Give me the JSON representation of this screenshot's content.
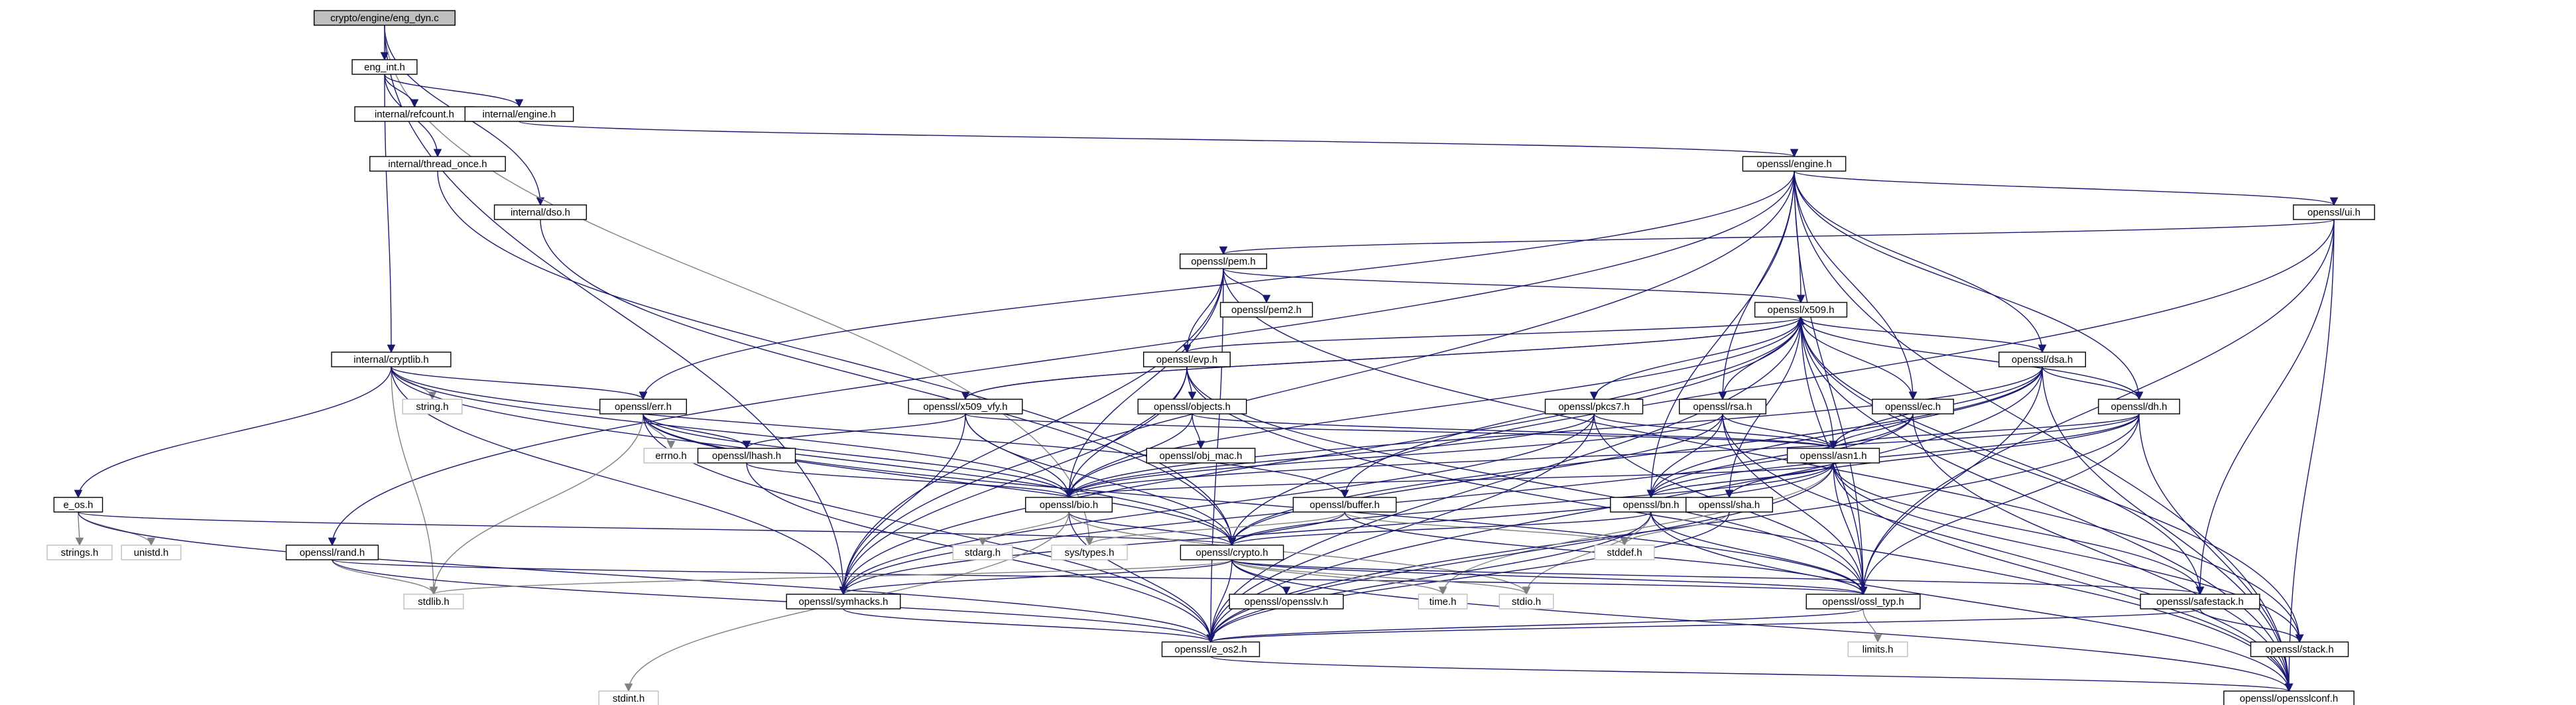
{
  "graph": {
    "title": "crypto/engine/eng_dyn.c",
    "edge_color": "#191970",
    "system_edge_color": "#808080",
    "root_fill": "#bfbfbf",
    "nodes": [
      {
        "id": "root",
        "label": "crypto/engine/eng_dyn.c",
        "kind": "root"
      },
      {
        "id": "eng_int",
        "label": "eng_int.h"
      },
      {
        "id": "refcount",
        "label": "internal/refcount.h"
      },
      {
        "id": "int_engine",
        "label": "internal/engine.h"
      },
      {
        "id": "thread_once",
        "label": "internal/thread_once.h"
      },
      {
        "id": "dso",
        "label": "internal/dso.h"
      },
      {
        "id": "engine",
        "label": "openssl/engine.h"
      },
      {
        "id": "ui",
        "label": "openssl/ui.h"
      },
      {
        "id": "pem",
        "label": "openssl/pem.h"
      },
      {
        "id": "pem2",
        "label": "openssl/pem2.h"
      },
      {
        "id": "x509",
        "label": "openssl/x509.h"
      },
      {
        "id": "cryptlib",
        "label": "internal/cryptlib.h"
      },
      {
        "id": "string",
        "label": "string.h",
        "kind": "sys"
      },
      {
        "id": "evp",
        "label": "openssl/evp.h"
      },
      {
        "id": "dsa",
        "label": "openssl/dsa.h"
      },
      {
        "id": "err",
        "label": "openssl/err.h"
      },
      {
        "id": "x509_vfy",
        "label": "openssl/x509_vfy.h"
      },
      {
        "id": "objects",
        "label": "openssl/objects.h"
      },
      {
        "id": "pkcs7",
        "label": "openssl/pkcs7.h"
      },
      {
        "id": "rsa",
        "label": "openssl/rsa.h"
      },
      {
        "id": "ec",
        "label": "openssl/ec.h"
      },
      {
        "id": "dh",
        "label": "openssl/dh.h"
      },
      {
        "id": "errno",
        "label": "errno.h",
        "kind": "sys"
      },
      {
        "id": "lhash",
        "label": "openssl/lhash.h"
      },
      {
        "id": "obj_mac",
        "label": "openssl/obj_mac.h"
      },
      {
        "id": "asn1",
        "label": "openssl/asn1.h"
      },
      {
        "id": "e_os",
        "label": "e_os.h"
      },
      {
        "id": "bio",
        "label": "openssl/bio.h"
      },
      {
        "id": "buffer",
        "label": "openssl/buffer.h"
      },
      {
        "id": "bn",
        "label": "openssl/bn.h"
      },
      {
        "id": "sha",
        "label": "openssl/sha.h"
      },
      {
        "id": "strings",
        "label": "strings.h",
        "kind": "sys"
      },
      {
        "id": "unistd",
        "label": "unistd.h",
        "kind": "sys"
      },
      {
        "id": "rand",
        "label": "openssl/rand.h"
      },
      {
        "id": "stdarg",
        "label": "stdarg.h",
        "kind": "sys"
      },
      {
        "id": "systypes",
        "label": "sys/types.h",
        "kind": "sys"
      },
      {
        "id": "crypto",
        "label": "openssl/crypto.h"
      },
      {
        "id": "stddef",
        "label": "stddef.h",
        "kind": "sys"
      },
      {
        "id": "stdlib",
        "label": "stdlib.h",
        "kind": "sys"
      },
      {
        "id": "symhacks",
        "label": "openssl/symhacks.h"
      },
      {
        "id": "opensslv",
        "label": "openssl/opensslv.h"
      },
      {
        "id": "time",
        "label": "time.h",
        "kind": "sys"
      },
      {
        "id": "stdio",
        "label": "stdio.h",
        "kind": "sys"
      },
      {
        "id": "ossl_typ",
        "label": "openssl/ossl_typ.h"
      },
      {
        "id": "safestack",
        "label": "openssl/safestack.h"
      },
      {
        "id": "limits",
        "label": "limits.h",
        "kind": "sys"
      },
      {
        "id": "e_os2",
        "label": "openssl/e_os2.h"
      },
      {
        "id": "stack",
        "label": "openssl/stack.h"
      },
      {
        "id": "stdint",
        "label": "stdint.h",
        "kind": "sys"
      },
      {
        "id": "opensslconf",
        "label": "openssl/opensslconf.h"
      }
    ],
    "edges": [
      [
        "root",
        "eng_int"
      ],
      [
        "root",
        "dso"
      ],
      [
        "root",
        "systypes"
      ],
      [
        "root",
        "symhacks"
      ],
      [
        "eng_int",
        "refcount"
      ],
      [
        "eng_int",
        "int_engine"
      ],
      [
        "eng_int",
        "thread_once"
      ],
      [
        "eng_int",
        "cryptlib"
      ],
      [
        "int_engine",
        "engine"
      ],
      [
        "thread_once",
        "crypto"
      ],
      [
        "dso",
        "crypto"
      ],
      [
        "engine",
        "ui"
      ],
      [
        "engine",
        "x509"
      ],
      [
        "engine",
        "rsa"
      ],
      [
        "engine",
        "dsa"
      ],
      [
        "engine",
        "dh"
      ],
      [
        "engine",
        "ec"
      ],
      [
        "engine",
        "bn"
      ],
      [
        "engine",
        "rand"
      ],
      [
        "engine",
        "err"
      ],
      [
        "engine",
        "ossl_typ"
      ],
      [
        "engine",
        "symhacks"
      ],
      [
        "engine",
        "opensslconf"
      ],
      [
        "ui",
        "pem"
      ],
      [
        "ui",
        "crypto"
      ],
      [
        "ui",
        "safestack"
      ],
      [
        "ui",
        "ossl_typ"
      ],
      [
        "ui",
        "opensslconf"
      ],
      [
        "pem",
        "pem2"
      ],
      [
        "pem",
        "x509"
      ],
      [
        "pem",
        "evp"
      ],
      [
        "pem",
        "bio"
      ],
      [
        "pem",
        "e_os2"
      ],
      [
        "pem",
        "symhacks"
      ],
      [
        "pem",
        "stack"
      ],
      [
        "x509",
        "evp"
      ],
      [
        "x509",
        "x509_vfy"
      ],
      [
        "x509",
        "pkcs7"
      ],
      [
        "x509",
        "rsa"
      ],
      [
        "x509",
        "dsa"
      ],
      [
        "x509",
        "ec"
      ],
      [
        "x509",
        "dh"
      ],
      [
        "x509",
        "asn1"
      ],
      [
        "x509",
        "bio"
      ],
      [
        "x509",
        "buffer"
      ],
      [
        "x509",
        "sha"
      ],
      [
        "x509",
        "ossl_typ"
      ],
      [
        "x509",
        "safestack"
      ],
      [
        "x509",
        "stack"
      ],
      [
        "x509",
        "opensslconf"
      ],
      [
        "x509",
        "e_os2"
      ],
      [
        "x509",
        "symhacks"
      ],
      [
        "cryptlib",
        "string"
      ],
      [
        "cryptlib",
        "err"
      ],
      [
        "cryptlib",
        "e_os"
      ],
      [
        "cryptlib",
        "bio"
      ],
      [
        "cryptlib",
        "buffer"
      ],
      [
        "cryptlib",
        "crypto"
      ],
      [
        "cryptlib",
        "stdlib"
      ],
      [
        "cryptlib",
        "symhacks"
      ],
      [
        "evp",
        "objects"
      ],
      [
        "evp",
        "bio"
      ],
      [
        "evp",
        "ossl_typ"
      ],
      [
        "evp",
        "opensslconf"
      ],
      [
        "evp",
        "symhacks"
      ],
      [
        "dsa",
        "dh"
      ],
      [
        "dsa",
        "bn"
      ],
      [
        "dsa",
        "asn1"
      ],
      [
        "dsa",
        "bio"
      ],
      [
        "dsa",
        "crypto"
      ],
      [
        "dsa",
        "ossl_typ"
      ],
      [
        "dsa",
        "e_os2"
      ],
      [
        "dsa",
        "opensslconf"
      ],
      [
        "err",
        "errno"
      ],
      [
        "err",
        "lhash"
      ],
      [
        "err",
        "bio"
      ],
      [
        "err",
        "crypto"
      ],
      [
        "err",
        "stdlib"
      ],
      [
        "err",
        "ossl_typ"
      ],
      [
        "err",
        "e_os2"
      ],
      [
        "x509_vfy",
        "x509"
      ],
      [
        "x509_vfy",
        "lhash"
      ],
      [
        "x509_vfy",
        "bio"
      ],
      [
        "x509_vfy",
        "crypto"
      ],
      [
        "x509_vfy",
        "symhacks"
      ],
      [
        "x509_vfy",
        "asn1"
      ],
      [
        "objects",
        "obj_mac"
      ],
      [
        "objects",
        "bio"
      ],
      [
        "objects",
        "asn1"
      ],
      [
        "pkcs7",
        "asn1"
      ],
      [
        "pkcs7",
        "bio"
      ],
      [
        "pkcs7",
        "e_os2"
      ],
      [
        "pkcs7",
        "symhacks"
      ],
      [
        "pkcs7",
        "ossl_typ"
      ],
      [
        "rsa",
        "asn1"
      ],
      [
        "rsa",
        "bio"
      ],
      [
        "rsa",
        "bn"
      ],
      [
        "rsa",
        "crypto"
      ],
      [
        "rsa",
        "ossl_typ"
      ],
      [
        "rsa",
        "opensslconf"
      ],
      [
        "ec",
        "asn1"
      ],
      [
        "ec",
        "bn"
      ],
      [
        "ec",
        "symhacks"
      ],
      [
        "ec",
        "opensslconf"
      ],
      [
        "dh",
        "asn1"
      ],
      [
        "dh",
        "bn"
      ],
      [
        "dh",
        "bio"
      ],
      [
        "dh",
        "ossl_typ"
      ],
      [
        "dh",
        "e_os2"
      ],
      [
        "dh",
        "opensslconf"
      ],
      [
        "dh",
        "sha"
      ],
      [
        "lhash",
        "bio"
      ],
      [
        "lhash",
        "e_os2"
      ],
      [
        "asn1",
        "time"
      ],
      [
        "asn1",
        "bio"
      ],
      [
        "asn1",
        "bn"
      ],
      [
        "asn1",
        "stack"
      ],
      [
        "asn1",
        "safestack"
      ],
      [
        "asn1",
        "ossl_typ"
      ],
      [
        "asn1",
        "symhacks"
      ],
      [
        "asn1",
        "e_os2"
      ],
      [
        "asn1",
        "opensslconf"
      ],
      [
        "asn1",
        "crypto"
      ],
      [
        "e_os",
        "strings"
      ],
      [
        "e_os",
        "unistd"
      ],
      [
        "e_os",
        "e_os2"
      ],
      [
        "e_os",
        "crypto"
      ],
      [
        "bio",
        "stdarg"
      ],
      [
        "bio",
        "crypto"
      ],
      [
        "bio",
        "stdio"
      ],
      [
        "bio",
        "e_os2"
      ],
      [
        "bio",
        "stdint"
      ],
      [
        "buffer",
        "crypto"
      ],
      [
        "buffer",
        "stddef"
      ],
      [
        "buffer",
        "systypes"
      ],
      [
        "buffer",
        "ossl_typ"
      ],
      [
        "bn",
        "crypto"
      ],
      [
        "bn",
        "stdio"
      ],
      [
        "bn",
        "e_os2"
      ],
      [
        "bn",
        "ossl_typ"
      ],
      [
        "bn",
        "opensslconf"
      ],
      [
        "sha",
        "stddef"
      ],
      [
        "sha",
        "e_os2"
      ],
      [
        "rand",
        "stdlib"
      ],
      [
        "rand",
        "ossl_typ"
      ],
      [
        "rand",
        "e_os2"
      ],
      [
        "crypto",
        "stdlib"
      ],
      [
        "crypto",
        "stdio"
      ],
      [
        "crypto",
        "symhacks"
      ],
      [
        "crypto",
        "opensslv"
      ],
      [
        "crypto",
        "time"
      ],
      [
        "crypto",
        "ossl_typ"
      ],
      [
        "crypto",
        "safestack"
      ],
      [
        "crypto",
        "e_os2"
      ],
      [
        "crypto",
        "opensslconf"
      ],
      [
        "symhacks",
        "e_os2"
      ],
      [
        "ossl_typ",
        "limits"
      ],
      [
        "ossl_typ",
        "e_os2"
      ],
      [
        "safestack",
        "stack"
      ],
      [
        "safestack",
        "e_os2"
      ],
      [
        "e_os2",
        "opensslconf"
      ]
    ]
  }
}
